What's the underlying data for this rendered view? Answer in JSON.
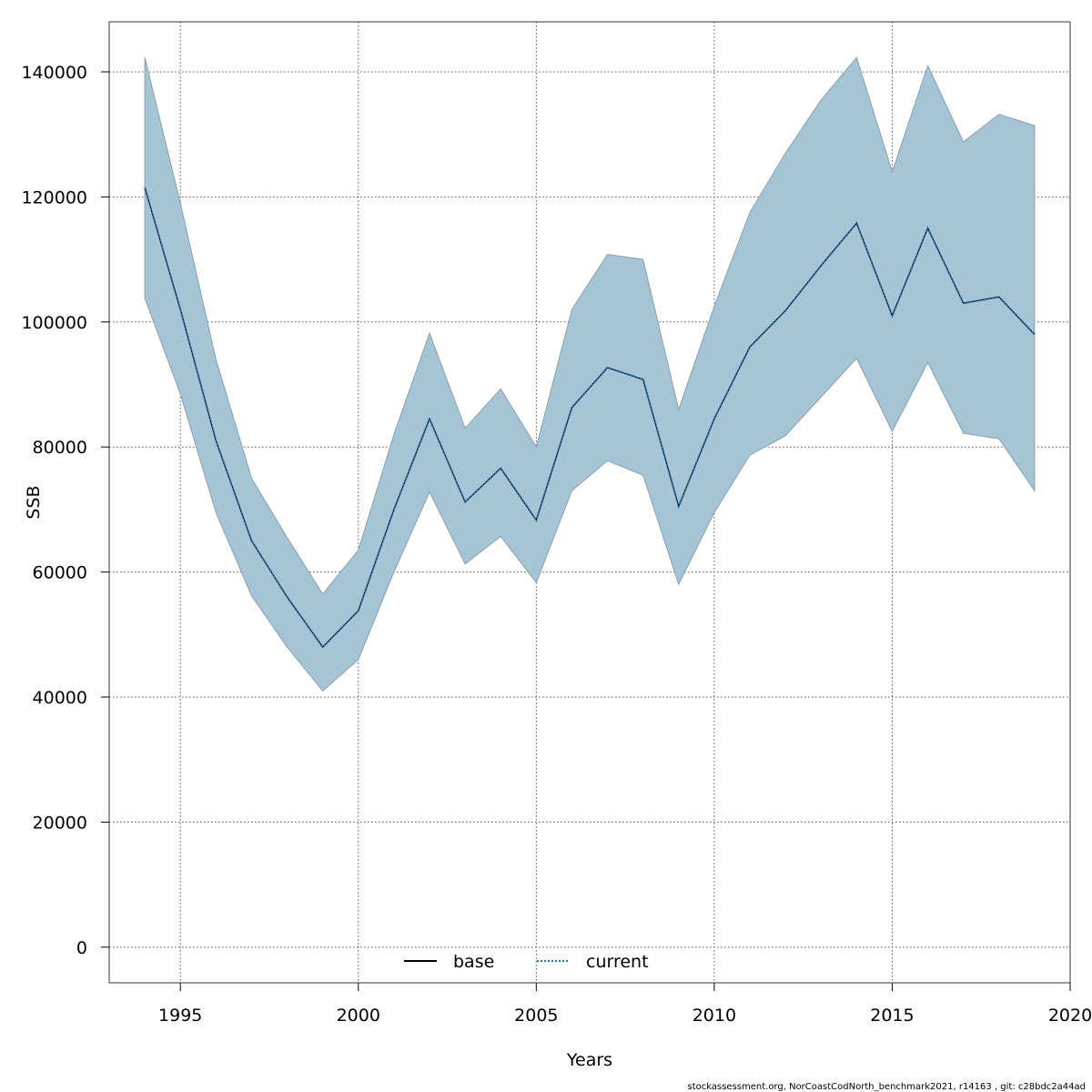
{
  "chart_data": {
    "type": "line",
    "title": "",
    "xlabel": "Years",
    "ylabel": "SSB",
    "xlim": [
      1993,
      2020
    ],
    "ylim": [
      -5700,
      148000
    ],
    "x_ticks": [
      1995,
      2000,
      2005,
      2010,
      2015,
      2020
    ],
    "y_ticks": [
      0,
      20000,
      40000,
      60000,
      80000,
      100000,
      120000,
      140000
    ],
    "grid": true,
    "legend_position": "bottom-center",
    "colors": {
      "band_fill": "#a5c4d6",
      "band_edge": "#8aa0ad",
      "base_line": "#000000",
      "current_line": "#1f6fa8",
      "grid": "#555555"
    },
    "x": [
      1994,
      1995,
      1996,
      1997,
      1998,
      1999,
      2000,
      2001,
      2002,
      2003,
      2004,
      2005,
      2006,
      2007,
      2008,
      2009,
      2010,
      2011,
      2012,
      2013,
      2014,
      2015,
      2016,
      2017,
      2018,
      2019
    ],
    "band": {
      "upper": [
        142300,
        119000,
        94000,
        75000,
        65500,
        56500,
        63500,
        82000,
        98200,
        83000,
        89300,
        80000,
        102000,
        110800,
        110000,
        86000,
        102500,
        117500,
        127000,
        135500,
        142300,
        124000,
        141000,
        128800,
        133200,
        131400
      ],
      "lower": [
        103800,
        88500,
        69500,
        56200,
        48000,
        41000,
        46000,
        60000,
        72800,
        61300,
        65700,
        58300,
        73000,
        77800,
        75500,
        58000,
        69500,
        78700,
        81800,
        88000,
        94200,
        82500,
        93500,
        82200,
        81300,
        73000
      ]
    },
    "series": [
      {
        "name": "base",
        "style": "solid",
        "values": [
          121500,
          102000,
          81000,
          65000,
          56000,
          48000,
          53800,
          70000,
          84500,
          71200,
          76600,
          68300,
          86300,
          92700,
          90800,
          70500,
          84500,
          96000,
          101800,
          109000,
          115800,
          101000,
          115000,
          103000,
          104000,
          98000
        ]
      },
      {
        "name": "current",
        "style": "dotted",
        "values": [
          121500,
          102000,
          81000,
          65000,
          56000,
          48000,
          53800,
          70000,
          84500,
          71200,
          76600,
          68300,
          86300,
          92700,
          90800,
          70500,
          84500,
          96000,
          101800,
          109000,
          115800,
          101000,
          115000,
          103000,
          104000,
          98000
        ]
      }
    ],
    "footer": "stockassessment.org, NorCoastCodNorth_benchmark2021, r14163 , git: c28bdc2a44ad"
  }
}
